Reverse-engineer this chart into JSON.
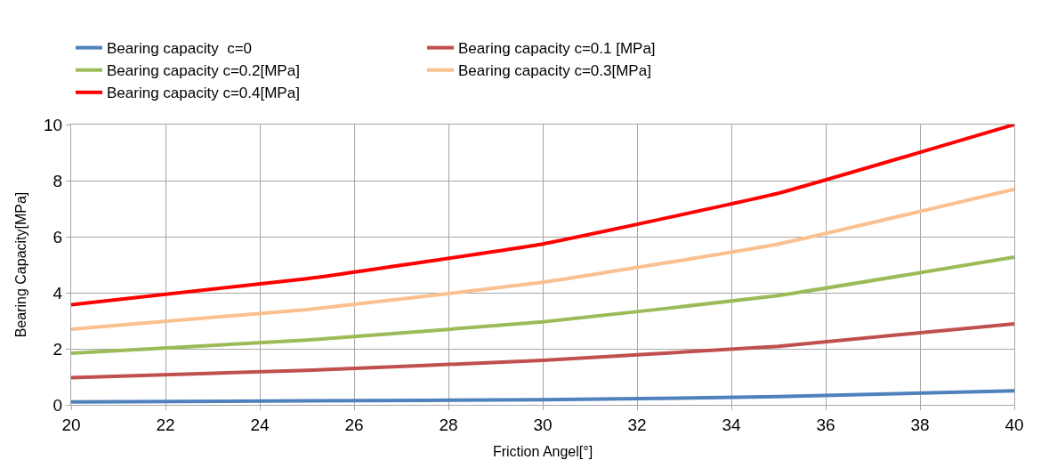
{
  "chart_data": {
    "type": "line",
    "xlabel": "Friction Angel[°]",
    "ylabel": "Bearing Capacity[MPa]",
    "x": [
      20,
      25,
      30,
      35,
      40
    ],
    "series": [
      {
        "name": "Bearing capacity  c=0",
        "color": "#4f81bd",
        "values": [
          0.1,
          0.14,
          0.18,
          0.29,
          0.5
        ]
      },
      {
        "name": "Bearing capacity c=0.1 [MPa]",
        "color": "#c0504d",
        "values": [
          0.97,
          1.23,
          1.59,
          2.09,
          2.89
        ]
      },
      {
        "name": "Bearing capacity c=0.2[MPa]",
        "color": "#9bbb59",
        "values": [
          1.84,
          2.31,
          2.96,
          3.9,
          5.27
        ]
      },
      {
        "name": "Bearing capacity c=0.3[MPa]",
        "color": "#fac090",
        "values": [
          2.7,
          3.4,
          4.37,
          5.74,
          7.69
        ]
      },
      {
        "name": "Bearing capacity c=0.4[MPa]",
        "color": "#ff0000",
        "values": [
          3.57,
          4.5,
          5.74,
          7.55,
          10.0
        ]
      }
    ],
    "xlim": [
      20,
      40
    ],
    "xticks": [
      20,
      22,
      24,
      26,
      28,
      30,
      32,
      34,
      36,
      38,
      40
    ],
    "ylim": [
      0,
      10
    ],
    "yticks": [
      0,
      2,
      4,
      6,
      8,
      10
    ],
    "grid": true,
    "legend": "top",
    "marker": "none",
    "line_style": "solid"
  }
}
